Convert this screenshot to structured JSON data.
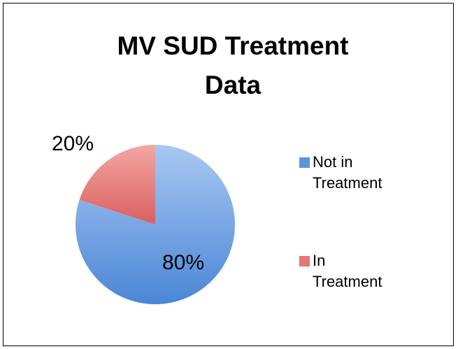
{
  "chart_data": {
    "type": "pie",
    "title": "MV SUD Treatment Data",
    "categories": [
      "Not in Treatment",
      "In Treatment"
    ],
    "values": [
      80,
      20
    ],
    "value_labels": [
      "80%",
      "20%"
    ],
    "colors": [
      "#5a93dd",
      "#e57875"
    ],
    "legend": "right"
  }
}
